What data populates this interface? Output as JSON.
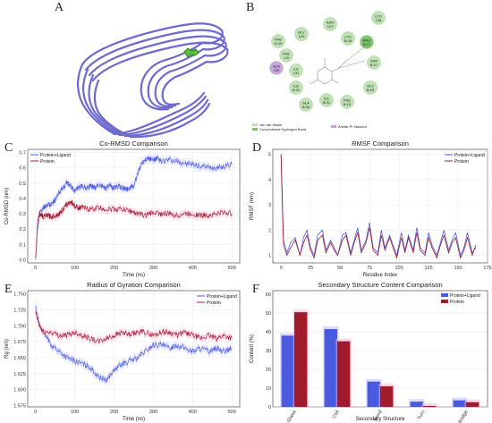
{
  "panels": {
    "A": "A",
    "B": "B",
    "C": "C",
    "D": "D",
    "E": "E",
    "F": "F"
  },
  "colors": {
    "protein_ligand": "#4a5be0",
    "protein": "#a01c2c",
    "shade_pl": "#b8b8ff",
    "shade_p": "#ffb0d8",
    "ribbon": "#6f6ad0",
    "residue_fill": "#bfe3b4",
    "highlight_fill": "#7ec46a",
    "ligand_contact": "#c9a3e0"
  },
  "interaction_map": {
    "residues": [
      "LYS I:28",
      "ASN I:27",
      "GLY I:29",
      "PHE G:19",
      "LYS B:28",
      "ARG B:27",
      "PHE I:19",
      "ASN B:27",
      "ALA I:30",
      "ILE I:31",
      "ILE B:31",
      "GLY B:29",
      "ALA B:30",
      "ILE B:31",
      "PHE B:19"
    ],
    "legend": [
      "van der Waals",
      "Conventional Hydrogen Bond",
      "Amide-Pi Stacked"
    ]
  },
  "chart_data": [
    {
      "id": "C",
      "type": "line",
      "title": "Co-RMSD Comparison",
      "xlabel": "Time (ns)",
      "ylabel": "Co-RMSD (nm)",
      "xlim": [
        -20,
        520
      ],
      "ylim": [
        -0.02,
        0.72
      ],
      "xticks": [
        "0",
        "100",
        "200",
        "300",
        "400",
        "500"
      ],
      "yticks": [
        "0.0",
        "0.1",
        "0.2",
        "0.3",
        "0.4",
        "0.5",
        "0.6",
        "0.7"
      ],
      "legend_position": "top-left",
      "grid": true,
      "series": [
        {
          "name": "Protein+Ligand",
          "x": [
            0,
            5,
            10,
            20,
            30,
            40,
            50,
            60,
            70,
            80,
            90,
            100,
            110,
            120,
            130,
            140,
            150,
            160,
            170,
            180,
            190,
            200,
            210,
            220,
            230,
            240,
            250,
            260,
            270,
            280,
            290,
            300,
            310,
            320,
            340,
            360,
            380,
            400,
            420,
            440,
            460,
            480,
            500
          ],
          "values": [
            0.0,
            0.2,
            0.3,
            0.34,
            0.36,
            0.36,
            0.39,
            0.44,
            0.47,
            0.5,
            0.48,
            0.45,
            0.47,
            0.48,
            0.47,
            0.48,
            0.47,
            0.49,
            0.48,
            0.47,
            0.48,
            0.47,
            0.48,
            0.47,
            0.46,
            0.47,
            0.48,
            0.56,
            0.63,
            0.66,
            0.66,
            0.65,
            0.66,
            0.64,
            0.65,
            0.64,
            0.63,
            0.62,
            0.61,
            0.6,
            0.6,
            0.61,
            0.62
          ]
        },
        {
          "name": "Protein",
          "x": [
            0,
            5,
            10,
            20,
            30,
            40,
            50,
            60,
            70,
            80,
            90,
            100,
            110,
            120,
            140,
            160,
            180,
            200,
            220,
            240,
            260,
            280,
            300,
            320,
            340,
            360,
            380,
            400,
            420,
            440,
            460,
            480,
            500
          ],
          "values": [
            0.0,
            0.25,
            0.3,
            0.28,
            0.29,
            0.28,
            0.29,
            0.3,
            0.33,
            0.36,
            0.38,
            0.35,
            0.34,
            0.34,
            0.33,
            0.34,
            0.33,
            0.33,
            0.33,
            0.32,
            0.3,
            0.29,
            0.31,
            0.3,
            0.3,
            0.29,
            0.3,
            0.3,
            0.29,
            0.29,
            0.3,
            0.31,
            0.3
          ]
        }
      ]
    },
    {
      "id": "D",
      "type": "line",
      "title": "RMSF Comparison",
      "xlabel": "Residue Index",
      "ylabel": "RMSF (nm)",
      "xlim": [
        -7,
        175
      ],
      "ylim": [
        0.7,
        5.2
      ],
      "xticks": [
        "0",
        "25",
        "50",
        "75",
        "100",
        "125",
        "150",
        "175"
      ],
      "yticks": [
        "1",
        "2",
        "3",
        "4",
        "5"
      ],
      "legend_position": "top-right",
      "grid": true,
      "series": [
        {
          "name": "Protein+Ligand",
          "x": [
            0,
            2,
            5,
            8,
            12,
            16,
            19,
            22,
            25,
            28,
            31,
            35,
            38,
            42,
            45,
            48,
            52,
            55,
            59,
            62,
            65,
            68,
            72,
            75,
            78,
            82,
            85,
            88,
            92,
            95,
            98,
            102,
            105,
            108,
            112,
            115,
            118,
            122,
            125,
            128,
            132,
            135,
            138,
            142,
            145,
            148,
            152,
            155,
            158,
            162,
            165
          ],
          "values": [
            5.0,
            1.6,
            1.1,
            1.5,
            1.7,
            1.0,
            1.7,
            2.0,
            1.3,
            1.0,
            1.8,
            2.0,
            1.2,
            1.6,
            1.3,
            1.0,
            1.8,
            1.9,
            1.1,
            1.6,
            2.1,
            1.2,
            1.6,
            2.3,
            1.3,
            1.1,
            2.0,
            1.3,
            1.8,
            1.4,
            1.0,
            1.9,
            1.2,
            1.8,
            1.2,
            2.1,
            1.3,
            1.1,
            1.9,
            1.4,
            1.0,
            1.5,
            2.0,
            1.2,
            1.6,
            1.9,
            1.0,
            1.3,
            1.9,
            1.1,
            1.3
          ]
        },
        {
          "name": "Protein",
          "x": [
            0,
            2,
            5,
            8,
            12,
            16,
            19,
            22,
            25,
            28,
            31,
            35,
            38,
            42,
            45,
            48,
            52,
            55,
            59,
            62,
            65,
            68,
            72,
            75,
            78,
            82,
            85,
            88,
            92,
            95,
            98,
            102,
            105,
            108,
            112,
            115,
            118,
            122,
            125,
            128,
            132,
            135,
            138,
            142,
            145,
            148,
            152,
            155,
            158,
            162,
            165
          ],
          "values": [
            5.0,
            1.4,
            1.0,
            1.3,
            1.6,
            1.0,
            1.5,
            1.8,
            1.2,
            0.9,
            1.6,
            1.8,
            1.1,
            1.5,
            1.2,
            1.0,
            1.6,
            1.8,
            1.0,
            1.5,
            1.9,
            1.1,
            1.5,
            2.1,
            1.2,
            1.0,
            1.8,
            1.2,
            1.7,
            1.3,
            0.9,
            1.7,
            1.1,
            1.7,
            1.1,
            1.9,
            1.2,
            1.0,
            1.7,
            1.3,
            0.9,
            1.4,
            1.8,
            1.1,
            1.5,
            1.7,
            0.9,
            1.2,
            1.7,
            1.0,
            1.4
          ]
        }
      ]
    },
    {
      "id": "E",
      "type": "line",
      "title": "Radius of Gyration Comparison",
      "xlabel": "Time (ns)",
      "ylabel": "Rg (nm)",
      "xlim": [
        -20,
        520
      ],
      "ylim": [
        1.573,
        1.755
      ],
      "xticks": [
        "0",
        "100",
        "200",
        "300",
        "400",
        "500"
      ],
      "yticks": [
        "1.575",
        "1.600",
        "1.625",
        "1.650",
        "1.675",
        "1.700",
        "1.725",
        "1.750"
      ],
      "legend_position": "top-right",
      "grid": true,
      "series": [
        {
          "name": "Protein+Ligand",
          "x": [
            0,
            10,
            20,
            40,
            60,
            80,
            100,
            120,
            140,
            160,
            180,
            200,
            220,
            240,
            260,
            280,
            300,
            320,
            340,
            360,
            380,
            400,
            420,
            440,
            460,
            480,
            500
          ],
          "values": [
            1.73,
            1.7,
            1.69,
            1.67,
            1.66,
            1.65,
            1.645,
            1.64,
            1.635,
            1.62,
            1.615,
            1.63,
            1.64,
            1.645,
            1.65,
            1.66,
            1.67,
            1.67,
            1.665,
            1.67,
            1.665,
            1.66,
            1.665,
            1.66,
            1.665,
            1.66,
            1.665
          ]
        },
        {
          "name": "Protein",
          "x": [
            0,
            10,
            20,
            40,
            60,
            80,
            100,
            120,
            140,
            160,
            180,
            200,
            220,
            240,
            260,
            280,
            300,
            320,
            340,
            360,
            380,
            400,
            420,
            440,
            460,
            480,
            500
          ],
          "values": [
            1.72,
            1.7,
            1.69,
            1.69,
            1.685,
            1.685,
            1.69,
            1.685,
            1.68,
            1.675,
            1.68,
            1.685,
            1.69,
            1.685,
            1.69,
            1.69,
            1.685,
            1.69,
            1.69,
            1.685,
            1.69,
            1.685,
            1.68,
            1.685,
            1.68,
            1.685,
            1.68
          ]
        }
      ]
    },
    {
      "id": "F",
      "type": "bar",
      "title": "Secondary Structure Content Comparison",
      "xlabel": "Secondary Structure",
      "ylabel": "Content (%)",
      "categories": [
        "β-Sheet",
        "Coil",
        "Bend",
        "Turn",
        "Bridge"
      ],
      "ylim": [
        0,
        62
      ],
      "yticks": [
        "0",
        "10",
        "20",
        "30",
        "40",
        "50",
        "60"
      ],
      "legend_position": "top-right",
      "grid": true,
      "series": [
        {
          "name": "Protein+Ligand",
          "values": [
            38,
            41.5,
            13.5,
            2.8,
            3.5
          ]
        },
        {
          "name": "Protein",
          "values": [
            50.5,
            35,
            11,
            0.5,
            2.5
          ]
        }
      ]
    }
  ]
}
